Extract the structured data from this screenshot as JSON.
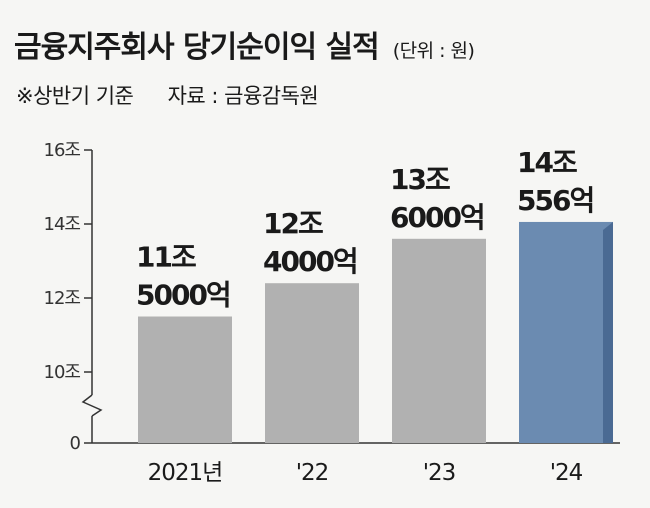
{
  "header": {
    "title": "금융지주회사 당기순이익 실적",
    "unit": "(단위 : 원)",
    "note": "※상반기 기준",
    "source": "자료 : 금융감독원"
  },
  "colors": {
    "bar": "#b1b1b1",
    "highlight_bar": "#6b8bb1",
    "highlight_side": "#4a6a93",
    "background": "#f6f6f4"
  },
  "chart_data": {
    "type": "bar",
    "categories": [
      "2021년",
      "'22",
      "'23",
      "'24"
    ],
    "values": [
      11.5,
      12.4,
      13.6,
      14.0556
    ],
    "value_unit": "조 원",
    "data_labels": [
      [
        "11조",
        "5000억"
      ],
      [
        "12조",
        "4000억"
      ],
      [
        "13조",
        "6000억"
      ],
      [
        "14조",
        "556억"
      ]
    ],
    "y_ticks": [
      "16조",
      "14조",
      "12조",
      "10조",
      "0"
    ],
    "ylim": [
      10,
      16
    ],
    "axis_break": true,
    "highlight_index": 3,
    "grid": false,
    "legend": "none"
  }
}
